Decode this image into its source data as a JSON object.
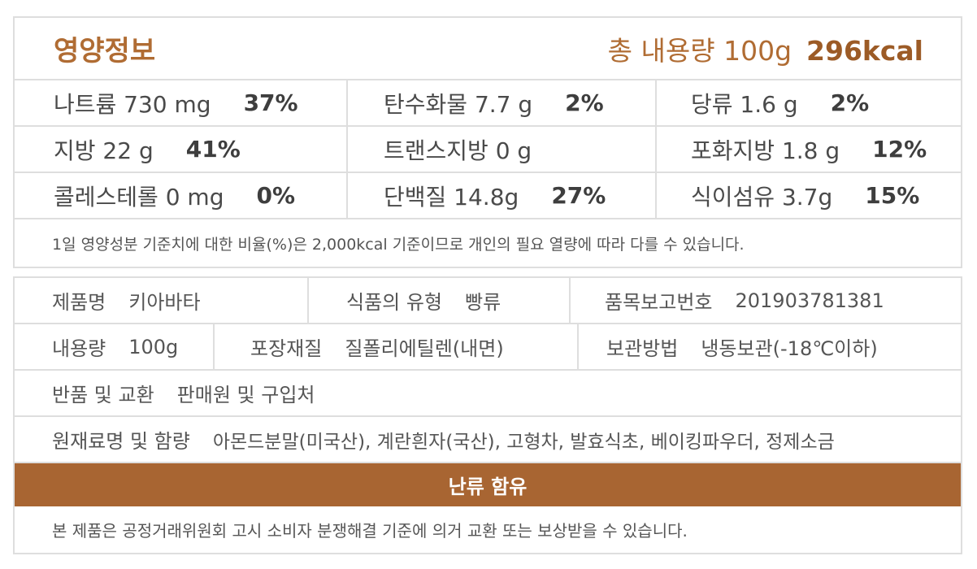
{
  "nutrition": {
    "title": "영양정보",
    "total_label": "총 내용량 100g",
    "kcal": "296kcal",
    "rows": [
      [
        {
          "label": "나트륨 730 mg",
          "pct": "37%"
        },
        {
          "label": "탄수화물 7.7 g",
          "pct": "2%"
        },
        {
          "label": "당류 1.6 g",
          "pct": "2%"
        }
      ],
      [
        {
          "label": "지방 22 g",
          "pct": "41%"
        },
        {
          "label": "트랜스지방  0 g",
          "pct": ""
        },
        {
          "label": "포화지방 1.8 g",
          "pct": "12%"
        }
      ],
      [
        {
          "label": "콜레스테롤 0 mg",
          "pct": "0%"
        },
        {
          "label": "단백질 14.8g",
          "pct": "27%"
        },
        {
          "label": "식이섬유 3.7g",
          "pct": "15%"
        }
      ]
    ],
    "footnote": "1일 영양성분 기준치에 대한 비율(%)은 2,000kcal 기준이므로 개인의 필요 열량에 따라 다를 수 있습니다."
  },
  "info": {
    "product_name_label": "제품명",
    "product_name": "키아바타",
    "food_type_label": "식품의 유형",
    "food_type": "빵류",
    "report_no_label": "품목보고번호",
    "report_no": "201903781381",
    "content_label": "내용량",
    "content": "100g",
    "packaging_label": "포장재질",
    "packaging": "질폴리에틸렌(내면)",
    "storage_label": "보관방법",
    "storage": "냉동보관(-18℃이하)",
    "exchange_label": "반품 및 교환",
    "exchange": "판매원 및 구입처",
    "ingredients_label": "원재료명 및 함량",
    "ingredients": "아몬드분말(미국산), 계란흰자(국산),  고형차, 발효식초, 베이킹파우더, 정제소금",
    "allergen_banner": "난류 함유",
    "notice": "본 제품은 공정거래위원회 고시 소비자 분쟁해결 기준에 의거 교환 또는 보상받을 수 있습니다."
  },
  "colors": {
    "accent": "#b06c33",
    "banner": "#a86532",
    "border": "#dedede"
  }
}
